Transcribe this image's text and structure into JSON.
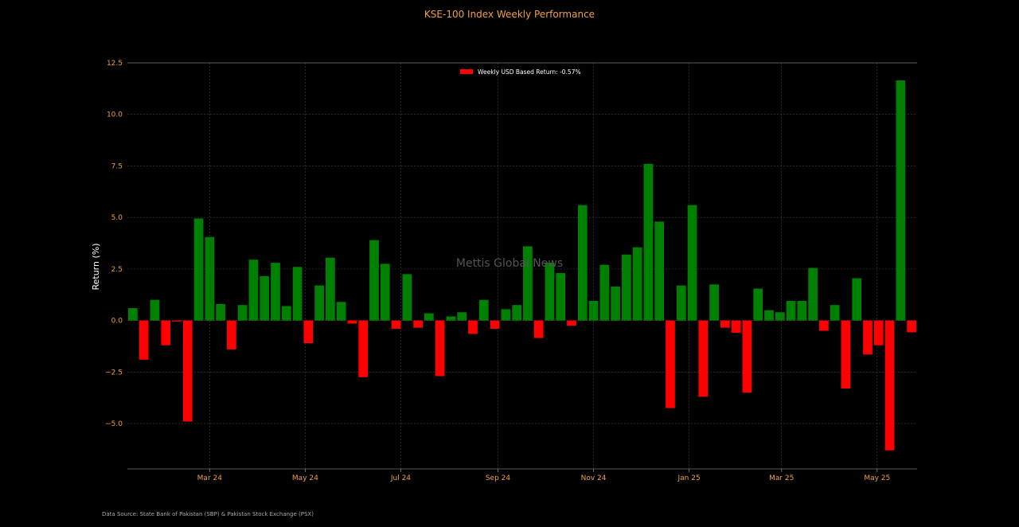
{
  "chart_data": {
    "type": "bar",
    "title": "KSE-100 Index Weekly Performance",
    "ylabel": "Return (%)",
    "xlabel": "",
    "ylim": [
      -7.2,
      12.5
    ],
    "yticks": [
      -5.0,
      -2.5,
      0.0,
      2.5,
      5.0,
      7.5,
      10.0,
      12.5
    ],
    "ytick_labels": [
      "−5.0",
      "−2.5",
      "0.0",
      "2.5",
      "5.0",
      "7.5",
      "10.0",
      "12.5"
    ],
    "xticks": [
      {
        "date": "2024-03-01",
        "label": "Mar 24"
      },
      {
        "date": "2024-05-01",
        "label": "May 24"
      },
      {
        "date": "2024-07-01",
        "label": "Jul 24"
      },
      {
        "date": "2024-09-01",
        "label": "Sep 24"
      },
      {
        "date": "2024-11-01",
        "label": "Nov 24"
      },
      {
        "date": "2025-01-01",
        "label": "Jan 25"
      },
      {
        "date": "2025-03-01",
        "label": "Mar 25"
      },
      {
        "date": "2025-05-01",
        "label": "May 25"
      }
    ],
    "x_start": "2024-01-12",
    "x_step_days": 7,
    "values": [
      0.6,
      -1.9,
      1.0,
      -1.2,
      -0.05,
      -4.9,
      4.95,
      4.05,
      0.8,
      -1.4,
      0.75,
      2.95,
      2.15,
      2.8,
      0.7,
      2.6,
      -1.1,
      1.7,
      3.05,
      0.9,
      -0.15,
      -2.75,
      3.9,
      2.75,
      -0.4,
      2.25,
      -0.35,
      0.35,
      -2.7,
      0.2,
      0.4,
      -0.65,
      1.0,
      -0.4,
      0.55,
      0.75,
      3.6,
      -0.85,
      2.8,
      2.3,
      -0.25,
      5.6,
      0.95,
      2.7,
      1.65,
      3.2,
      3.55,
      7.6,
      4.8,
      -4.25,
      1.7,
      5.6,
      -3.7,
      1.75,
      -0.35,
      -0.6,
      -3.5,
      1.55,
      0.5,
      0.4,
      0.95,
      0.95,
      2.55,
      -0.5,
      0.75,
      -3.3,
      2.05,
      -1.65,
      -1.2,
      -6.3,
      11.65,
      -0.57
    ],
    "positive_color": "#008000",
    "negative_color": "#ff0000",
    "legend": {
      "label": "Weekly USD Based Return: -0.57%",
      "color": "#ff0000",
      "position": "top-center"
    },
    "grid": true,
    "watermark": "Mettis Global News"
  },
  "source_note": "Data Source: State Bank of Pakistan (SBP) & Pakistan Stock Exchange (PSX)"
}
